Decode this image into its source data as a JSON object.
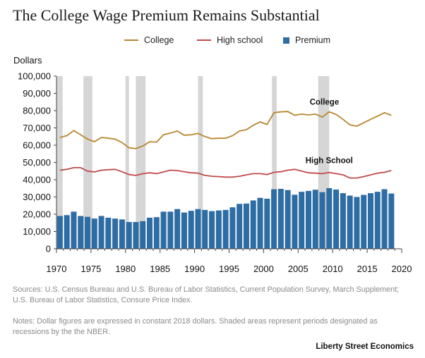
{
  "title": "The College Wage Premium Remains Substantial",
  "legend": {
    "college": "College",
    "high_school": "High school",
    "premium": "Premium"
  },
  "colors": {
    "college": "#b8862e",
    "high_school": "#c24a4a",
    "premium": "#2e6da4",
    "recession": "#d6d6d6",
    "axis": "#444444"
  },
  "sources": "Sources: U.S. Census Bureau and U.S. Bureau of Labor Statistics, Current Population Survey, March Supplement; U.S. Bureau of Labor Statistics, Consure Price Index.",
  "notes": "Notes: Dollar figures are expressed in constant 2018 dollars. Shaded areas represent periods designated as recessions by the the NBER.",
  "credit": "Liberty Street Economics",
  "chart_data": {
    "type": "bar",
    "ylabel": "Dollars",
    "xlim": [
      1970,
      2020
    ],
    "ylim": [
      0,
      100000
    ],
    "x_ticks": [
      1970,
      1975,
      1980,
      1985,
      1990,
      1995,
      2000,
      2005,
      2010,
      2015,
      2020
    ],
    "y_ticks": [
      0,
      10000,
      20000,
      30000,
      40000,
      50000,
      60000,
      70000,
      80000,
      90000,
      100000
    ],
    "y_tick_labels": [
      "0",
      "10,000",
      "20,000",
      "30,000",
      "40,000",
      "50,000",
      "60,000",
      "70,000",
      "80,000",
      "90,000",
      "100,000"
    ],
    "grid": false,
    "legend_position": "top",
    "recessions": [
      [
        1970,
        1970.9
      ],
      [
        1973.9,
        1975.2
      ],
      [
        1980,
        1980.5
      ],
      [
        1981.5,
        1982.9
      ],
      [
        1990.5,
        1991.2
      ],
      [
        2001.2,
        2001.9
      ],
      [
        2007.9,
        2009.5
      ]
    ],
    "annotations": [
      {
        "text": "College",
        "x": 2008.8,
        "y": 83500
      },
      {
        "text": "High School",
        "x": 2009.5,
        "y": 49500
      }
    ],
    "years": [
      1970,
      1971,
      1972,
      1973,
      1974,
      1975,
      1976,
      1977,
      1978,
      1979,
      1980,
      1981,
      1982,
      1983,
      1984,
      1985,
      1986,
      1987,
      1988,
      1989,
      1990,
      1991,
      1992,
      1993,
      1994,
      1995,
      1996,
      1997,
      1998,
      1999,
      2000,
      2001,
      2002,
      2003,
      2004,
      2005,
      2006,
      2007,
      2008,
      2009,
      2010,
      2011,
      2012,
      2013,
      2014,
      2015,
      2016,
      2017,
      2018
    ],
    "series": [
      {
        "name": "College",
        "type": "line",
        "values": [
          64500,
          65500,
          68500,
          66000,
          63500,
          62000,
          64500,
          64000,
          63500,
          61500,
          58500,
          58000,
          59500,
          62000,
          61800,
          66000,
          67000,
          68200,
          65800,
          66000,
          66800,
          65000,
          63800,
          64000,
          64000,
          65500,
          68200,
          69000,
          71500,
          73500,
          72000,
          78800,
          79300,
          79500,
          77300,
          78000,
          77500,
          78000,
          76300,
          79300,
          77800,
          75000,
          71800,
          71000,
          73000,
          75000,
          76800,
          78800,
          77300
        ]
      },
      {
        "name": "High school",
        "type": "line",
        "values": [
          45500,
          46000,
          47000,
          47000,
          45000,
          44500,
          45500,
          45800,
          46000,
          44600,
          43000,
          42500,
          43500,
          44000,
          43500,
          44500,
          45500,
          45300,
          44600,
          44000,
          43800,
          42500,
          42000,
          41800,
          41500,
          41500,
          42000,
          42800,
          43500,
          43500,
          43000,
          44300,
          44600,
          45500,
          46000,
          45000,
          44000,
          43800,
          43500,
          44200,
          43500,
          42800,
          41000,
          41000,
          41800,
          42800,
          43800,
          44300,
          45300
        ]
      },
      {
        "name": "Premium",
        "type": "bar",
        "values": [
          19000,
          19500,
          21500,
          19000,
          18500,
          17500,
          19000,
          18000,
          17500,
          17000,
          15500,
          15500,
          16000,
          18000,
          18300,
          21500,
          21500,
          23000,
          21000,
          22000,
          23000,
          22500,
          21800,
          22200,
          22500,
          24000,
          26000,
          26200,
          28000,
          29500,
          29000,
          34500,
          34700,
          34000,
          31300,
          33000,
          33500,
          34200,
          32800,
          35100,
          34300,
          32200,
          30800,
          30000,
          31200,
          32200,
          33000,
          34500,
          32000
        ]
      }
    ]
  }
}
